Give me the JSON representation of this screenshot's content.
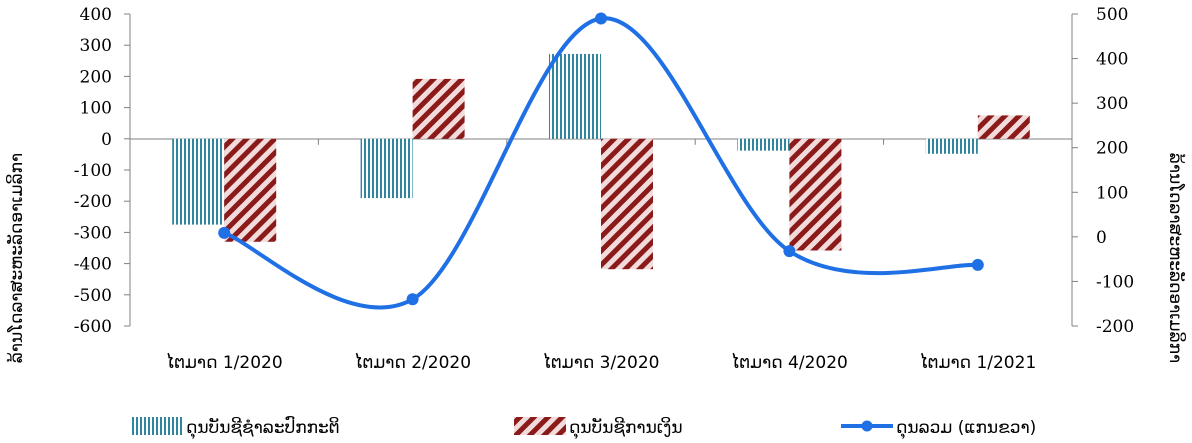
{
  "chart_data": {
    "type": "bar",
    "categories": [
      "ໄຕມາດ 1/2020",
      "ໄຕມາດ 2/2020",
      "ໄຕມາດ 3/2020",
      "ໄຕມາດ 4/2020",
      "ໄຕມາດ 1/2021"
    ],
    "series": [
      {
        "name": "ດຸນບັນຊີຊໍາລະປົກກະຕິ",
        "type": "bar",
        "axis": "left",
        "values": [
          -275,
          -190,
          272,
          -38,
          -48
        ],
        "color": "#31859c",
        "pattern": "vertical-stripes"
      },
      {
        "name": "ດຸນບັນຊີການເງິນ",
        "type": "bar",
        "axis": "left",
        "values": [
          -330,
          192,
          -418,
          -358,
          75
        ],
        "color": "#8b1a1a",
        "pattern": "diagonal-stripes"
      },
      {
        "name": "ດຸນລວມ (ແກນຂວາ)",
        "type": "line",
        "axis": "right",
        "values": [
          9,
          -140,
          490,
          -32,
          -63
        ],
        "color": "#1f6fe5",
        "smooth": true
      }
    ],
    "ylabel_left": "ລ້ານໂດລາສະຫະລັດອາເມລິກາ",
    "ylabel_right": "ລ້ານໂດລາສະຫະລັດອາເມລິກາ",
    "ylim_left": [
      -600,
      400
    ],
    "yticks_left": [
      "400",
      "300",
      "200",
      "100",
      "0",
      "-100",
      "-200",
      "-300",
      "-400",
      "-500",
      "-600"
    ],
    "ylim_right": [
      -200,
      500
    ],
    "yticks_right": [
      "500",
      "400",
      "300",
      "200",
      "100",
      "0",
      "-100",
      "-200"
    ],
    "grid": false,
    "legend_position": "bottom"
  }
}
